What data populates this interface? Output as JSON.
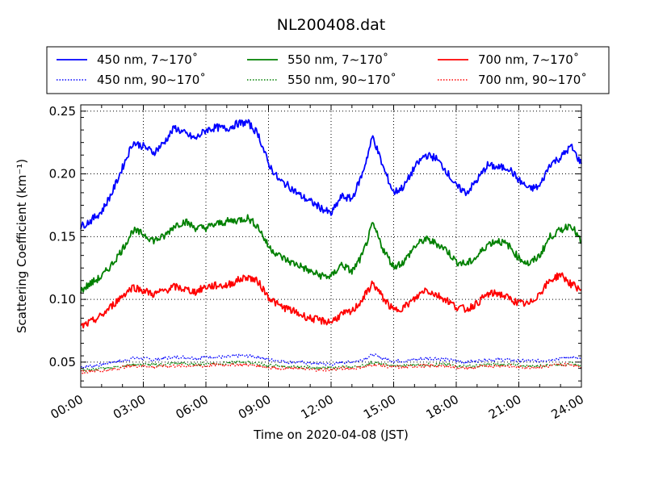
{
  "chart_data": {
    "type": "line",
    "title": "NL200408.dat",
    "xlabel": "Time on 2020-04-08 (JST)",
    "ylabel": "Scattering Coefficient (km⁻¹)",
    "x_unit": "hours",
    "xlim": [
      0,
      24
    ],
    "ylim": [
      0.03,
      0.255
    ],
    "x_ticks": [
      0,
      3,
      6,
      9,
      12,
      15,
      18,
      21,
      24
    ],
    "x_tick_labels": [
      "00:00",
      "03:00",
      "06:00",
      "09:00",
      "12:00",
      "15:00",
      "18:00",
      "21:00",
      "24:00"
    ],
    "y_ticks": [
      0.05,
      0.1,
      0.15,
      0.2,
      0.25
    ],
    "y_tick_labels": [
      "0.05",
      "0.10",
      "0.15",
      "0.20",
      "0.25"
    ],
    "grid": true,
    "legend_position": "top",
    "x": [
      0,
      0.5,
      1,
      1.5,
      2,
      2.5,
      3,
      3.5,
      4,
      4.5,
      5,
      5.5,
      6,
      6.5,
      7,
      7.5,
      8,
      8.5,
      9,
      9.5,
      10,
      10.5,
      11,
      11.5,
      12,
      12.5,
      13,
      13.5,
      14,
      14.5,
      15,
      15.5,
      16,
      16.5,
      17,
      17.5,
      18,
      18.5,
      19,
      19.5,
      20,
      20.5,
      21,
      21.5,
      22,
      22.5,
      23,
      23.5,
      24
    ],
    "series": [
      {
        "name": "450 nm, 7∼170˚",
        "color": "#0000ff",
        "style": "solid",
        "values": [
          0.158,
          0.163,
          0.17,
          0.185,
          0.205,
          0.225,
          0.222,
          0.217,
          0.225,
          0.237,
          0.232,
          0.228,
          0.235,
          0.237,
          0.236,
          0.24,
          0.241,
          0.232,
          0.208,
          0.195,
          0.19,
          0.183,
          0.178,
          0.173,
          0.168,
          0.182,
          0.18,
          0.2,
          0.23,
          0.205,
          0.185,
          0.19,
          0.205,
          0.215,
          0.213,
          0.203,
          0.19,
          0.185,
          0.195,
          0.207,
          0.205,
          0.205,
          0.195,
          0.188,
          0.19,
          0.208,
          0.213,
          0.222,
          0.208
        ]
      },
      {
        "name": "550 nm, 7∼170˚",
        "color": "#008000",
        "style": "solid",
        "values": [
          0.107,
          0.113,
          0.118,
          0.128,
          0.14,
          0.155,
          0.152,
          0.147,
          0.15,
          0.159,
          0.162,
          0.157,
          0.157,
          0.16,
          0.162,
          0.163,
          0.165,
          0.158,
          0.142,
          0.135,
          0.13,
          0.127,
          0.122,
          0.119,
          0.118,
          0.128,
          0.122,
          0.135,
          0.16,
          0.14,
          0.126,
          0.13,
          0.142,
          0.148,
          0.145,
          0.14,
          0.13,
          0.128,
          0.134,
          0.144,
          0.147,
          0.143,
          0.133,
          0.128,
          0.135,
          0.15,
          0.155,
          0.16,
          0.145
        ]
      },
      {
        "name": "700 nm, 7∼170˚",
        "color": "#ff0000",
        "style": "solid",
        "values": [
          0.078,
          0.082,
          0.087,
          0.095,
          0.103,
          0.11,
          0.107,
          0.104,
          0.107,
          0.11,
          0.108,
          0.106,
          0.11,
          0.111,
          0.111,
          0.115,
          0.118,
          0.114,
          0.102,
          0.095,
          0.092,
          0.088,
          0.085,
          0.083,
          0.082,
          0.088,
          0.09,
          0.1,
          0.113,
          0.101,
          0.091,
          0.094,
          0.1,
          0.108,
          0.104,
          0.1,
          0.094,
          0.092,
          0.097,
          0.104,
          0.105,
          0.101,
          0.097,
          0.096,
          0.105,
          0.115,
          0.12,
          0.112,
          0.108
        ]
      },
      {
        "name": "450 nm, 90∼170˚",
        "color": "#0000ff",
        "style": "dotted",
        "values": [
          0.046,
          0.047,
          0.048,
          0.05,
          0.051,
          0.053,
          0.053,
          0.052,
          0.053,
          0.054,
          0.054,
          0.053,
          0.054,
          0.054,
          0.054,
          0.055,
          0.055,
          0.054,
          0.052,
          0.051,
          0.05,
          0.05,
          0.049,
          0.049,
          0.048,
          0.05,
          0.05,
          0.052,
          0.056,
          0.053,
          0.051,
          0.051,
          0.052,
          0.053,
          0.053,
          0.052,
          0.051,
          0.05,
          0.051,
          0.052,
          0.052,
          0.052,
          0.051,
          0.051,
          0.051,
          0.052,
          0.053,
          0.054,
          0.052
        ]
      },
      {
        "name": "550 nm, 90∼170˚",
        "color": "#008000",
        "style": "dotted",
        "values": [
          0.043,
          0.044,
          0.045,
          0.046,
          0.047,
          0.048,
          0.048,
          0.048,
          0.048,
          0.049,
          0.049,
          0.048,
          0.049,
          0.049,
          0.049,
          0.05,
          0.05,
          0.049,
          0.047,
          0.047,
          0.046,
          0.046,
          0.046,
          0.045,
          0.045,
          0.046,
          0.046,
          0.047,
          0.05,
          0.048,
          0.047,
          0.047,
          0.048,
          0.048,
          0.048,
          0.048,
          0.047,
          0.047,
          0.047,
          0.048,
          0.048,
          0.048,
          0.047,
          0.047,
          0.047,
          0.048,
          0.048,
          0.049,
          0.047
        ]
      },
      {
        "name": "700 nm, 90∼170˚",
        "color": "#ff0000",
        "style": "dotted",
        "values": [
          0.042,
          0.043,
          0.043,
          0.044,
          0.046,
          0.047,
          0.047,
          0.046,
          0.047,
          0.047,
          0.047,
          0.047,
          0.047,
          0.048,
          0.048,
          0.048,
          0.048,
          0.047,
          0.046,
          0.045,
          0.045,
          0.045,
          0.044,
          0.044,
          0.044,
          0.045,
          0.045,
          0.046,
          0.048,
          0.047,
          0.046,
          0.046,
          0.047,
          0.047,
          0.047,
          0.047,
          0.046,
          0.045,
          0.046,
          0.047,
          0.047,
          0.047,
          0.046,
          0.046,
          0.046,
          0.047,
          0.048,
          0.048,
          0.046
        ]
      }
    ]
  }
}
